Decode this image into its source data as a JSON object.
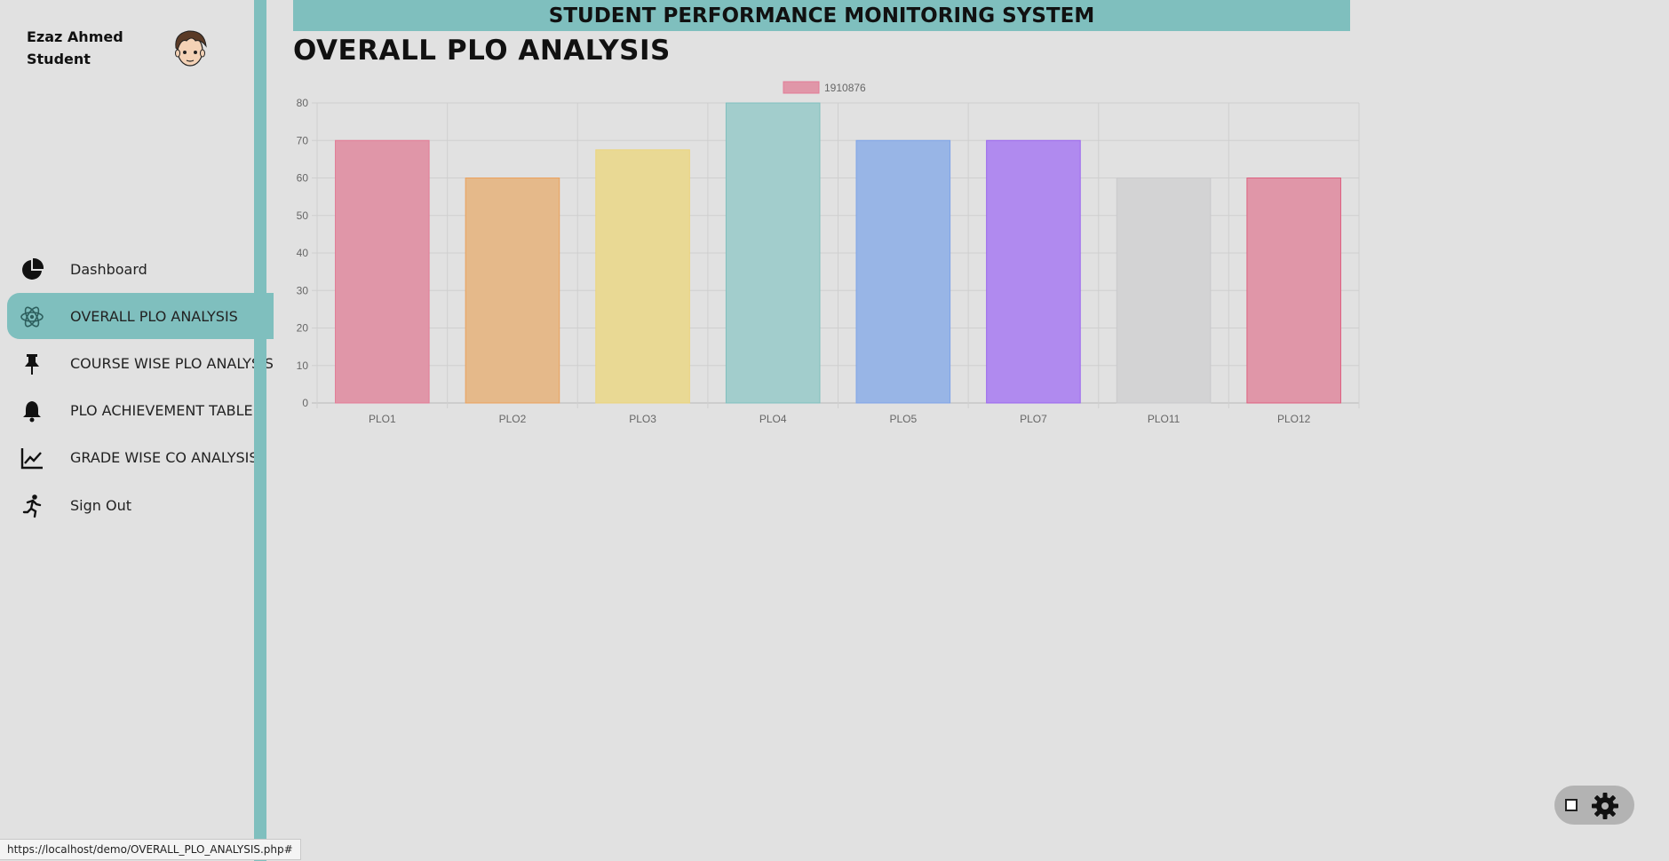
{
  "user": {
    "name": "Ezaz Ahmed",
    "role": "Student",
    "avatar_icon": "avatar-boy-icon"
  },
  "nav": [
    {
      "label": "Dashboard",
      "icon": "pie-chart-icon",
      "active": false
    },
    {
      "label": "OVERALL PLO ANALYSIS",
      "icon": "atom-icon",
      "active": true
    },
    {
      "label": "COURSE WISE PLO ANALYSIS",
      "icon": "pin-icon",
      "active": false
    },
    {
      "label": "PLO ACHIEVEMENT TABLE",
      "icon": "bell-icon",
      "active": false
    },
    {
      "label": "GRADE WISE CO ANALYSIS",
      "icon": "line-chart-icon",
      "active": false
    },
    {
      "label": "Sign Out",
      "icon": "running-person-icon",
      "active": false
    }
  ],
  "header": {
    "title": "STUDENT PERFORMANCE MONITORING SYSTEM"
  },
  "page": {
    "title": "OVERALL PLO ANALYSIS"
  },
  "status_url": "https://localhost/demo/OVERALL_PLO_ANALYSIS.php#",
  "colors": {
    "accent": "#7fbfbe",
    "background": "#e1e1e1"
  },
  "chart_data": {
    "type": "bar",
    "categories": [
      "PLO1",
      "PLO2",
      "PLO3",
      "PLO4",
      "PLO5",
      "PLO7",
      "PLO11",
      "PLO12"
    ],
    "series": [
      {
        "name": "1910876",
        "values": [
          70,
          60,
          67.5,
          80,
          70,
          70,
          60,
          60
        ]
      }
    ],
    "bar_colors": [
      "#e096a8",
      "#e5b98a",
      "#e9d994",
      "#a2cdcc",
      "#98b5e6",
      "#b08aef",
      "#d3d3d4",
      "#e096a8"
    ],
    "bar_border_colors": [
      "#e37b96",
      "#eaa15c",
      "#ecd47c",
      "#7fbfbe",
      "#7ea3e8",
      "#9a65ef",
      "#c9c9cb",
      "#de5f7f"
    ],
    "ylim": [
      0,
      80
    ],
    "yticks": [
      0,
      10,
      20,
      30,
      40,
      50,
      60,
      70,
      80
    ],
    "legend_position": "top",
    "grid": true
  }
}
